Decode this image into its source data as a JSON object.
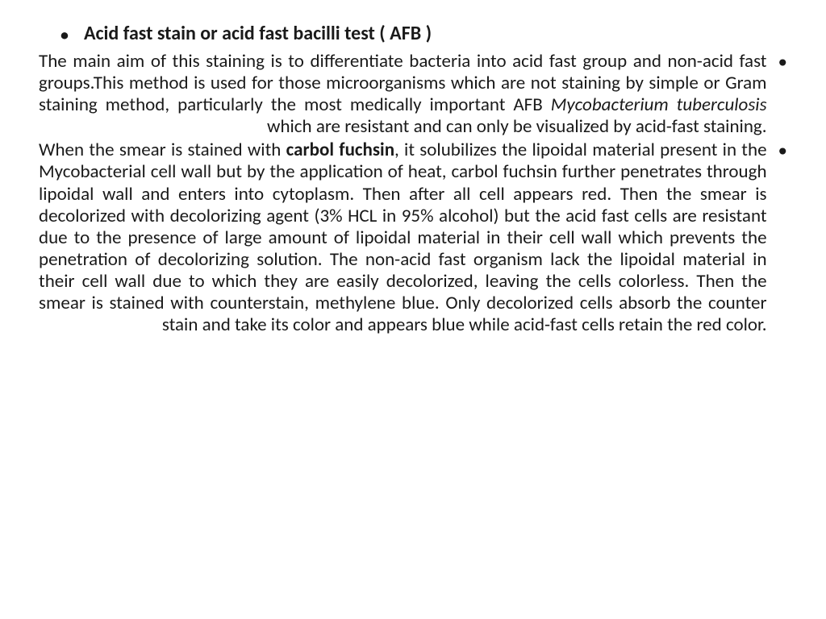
{
  "document": {
    "background_color": "#ffffff",
    "text_color": "#1a1a1a",
    "font_family": "Calibri",
    "title_fontsize": 24,
    "body_fontsize": 23,
    "bullet_char": "•",
    "title": "Acid fast stain or acid fast bacilli test ( AFB )",
    "para1_pre": "The main aim of this staining is to differentiate bacteria into acid fast group and non-acid fast groups.This method is used for those microorganisms which are not staining by simple or Gram staining method, particularly the most medically important AFB ",
    "para1_italic": "Mycobacterium tuberculosis",
    "para1_post": " which are resistant and can only be visualized by acid-fast staining.",
    "para2_pre": "When the smear is stained with ",
    "para2_bold": "carbol fuchsin",
    "para2_post": ", it solubilizes the lipoidal material present in the Mycobacterial cell wall but by the application of heat, carbol fuchsin further penetrates through lipoidal wall and enters into cytoplasm. Then after all cell appears red. Then the smear is decolorized with decolorizing agent (3% HCL in 95% alcohol) but the acid fast cells are resistant due to the presence of large amount of lipoidal material in their cell wall which prevents the penetration of decolorizing solution. The non-acid fast organism lack the lipoidal material in their cell wall due to which they are easily decolorized, leaving the cells colorless. Then the smear is stained with counterstain, methylene blue. Only decolorized cells absorb the counter stain and take its color and appears blue while acid-fast cells retain the red color."
  }
}
